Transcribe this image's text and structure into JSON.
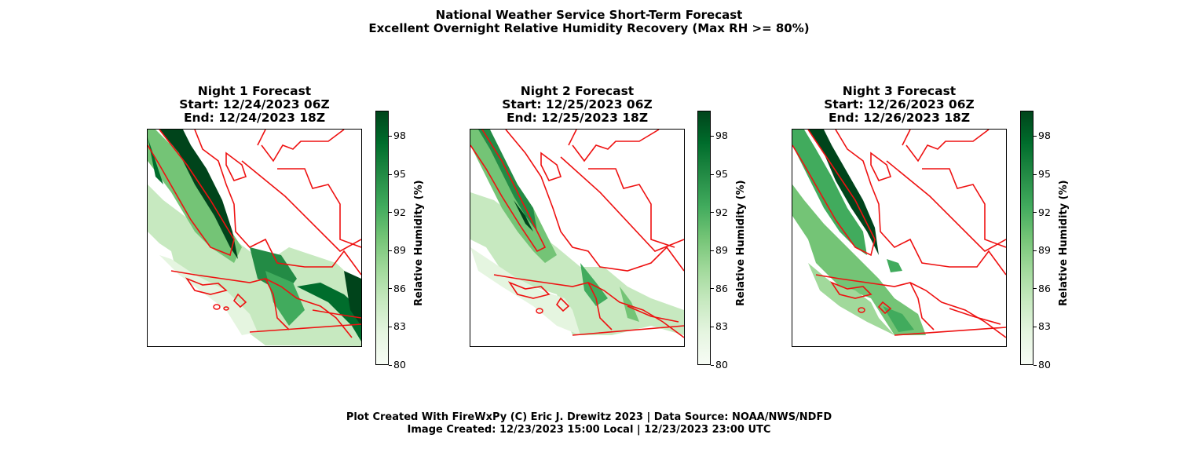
{
  "figure": {
    "title_line1": "National Weather Service Short-Term Forecast",
    "title_line2": "Excellent Overnight Relative Humidity Recovery (Max RH >= 80%)",
    "footer_line1": "Plot Created With FireWxPy (C) Eric J. Drewitz 2023 | Data Source: NOAA/NWS/NDFD",
    "footer_line2": "Image Created: 12/23/2023 15:00 Local | 12/23/2023 23:00 UTC"
  },
  "panels": [
    {
      "title": "Night 1 Forecast",
      "start": "Start: 12/24/2023 06Z",
      "end": "End: 12/24/2023 18Z"
    },
    {
      "title": "Night 2 Forecast",
      "start": "Start: 12/25/2023 06Z",
      "end": "End: 12/25/2023 18Z"
    },
    {
      "title": "Night 3 Forecast",
      "start": "Start: 12/26/2023 06Z",
      "end": "End: 12/26/2023 18Z"
    }
  ],
  "colorbar": {
    "label": "Relative Humidity (%)",
    "min": 80,
    "max": 100,
    "ticks": [
      "80",
      "83",
      "86",
      "89",
      "92",
      "95",
      "98"
    ],
    "colors": [
      "#f7fcf5",
      "#e5f5e0",
      "#c7e9c0",
      "#a1d99b",
      "#74c476",
      "#41ab5d",
      "#238b45",
      "#006d2c",
      "#00441b"
    ],
    "boundary_color": "#ee1111"
  }
}
